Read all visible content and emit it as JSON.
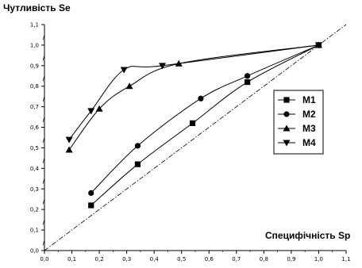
{
  "chart_data": {
    "type": "line",
    "ylabel": "Чутливість Se",
    "xlabel": "Специфічність Sp",
    "xlim": [
      0.0,
      1.1
    ],
    "ylim": [
      0.0,
      1.1
    ],
    "x_ticks": [
      "0,0",
      "0,1",
      "0,2",
      "0,3",
      "0,4",
      "0,5",
      "0,6",
      "0,7",
      "0,8",
      "0,9",
      "1,0",
      "1,1"
    ],
    "y_ticks": [
      "0,0",
      "0,1",
      "0,2",
      "0,3",
      "0,4",
      "0,5",
      "0,6",
      "0,7",
      "0,8",
      "0,9",
      "1,0",
      "1,1"
    ],
    "grid": false,
    "legend_position": "right",
    "reference_line": {
      "x": [
        0,
        1.1
      ],
      "y": [
        0,
        1.1
      ],
      "style": "dash-dot"
    },
    "series": [
      {
        "name": "M1",
        "marker": "square",
        "x": [
          0.17,
          0.34,
          0.54,
          0.74,
          1.0
        ],
        "y": [
          0.22,
          0.42,
          0.62,
          0.82,
          1.0
        ]
      },
      {
        "name": "M2",
        "marker": "circle",
        "x": [
          0.17,
          0.34,
          0.57,
          0.74,
          1.0
        ],
        "y": [
          0.28,
          0.51,
          0.74,
          0.85,
          1.0
        ]
      },
      {
        "name": "M3",
        "marker": "triangle-up",
        "x": [
          0.09,
          0.2,
          0.31,
          0.49,
          1.0
        ],
        "y": [
          0.49,
          0.69,
          0.8,
          0.91,
          1.0
        ]
      },
      {
        "name": "M4",
        "marker": "triangle-down",
        "x": [
          0.09,
          0.17,
          0.29,
          0.43,
          1.0
        ],
        "y": [
          0.54,
          0.68,
          0.88,
          0.9,
          1.0
        ]
      }
    ]
  }
}
